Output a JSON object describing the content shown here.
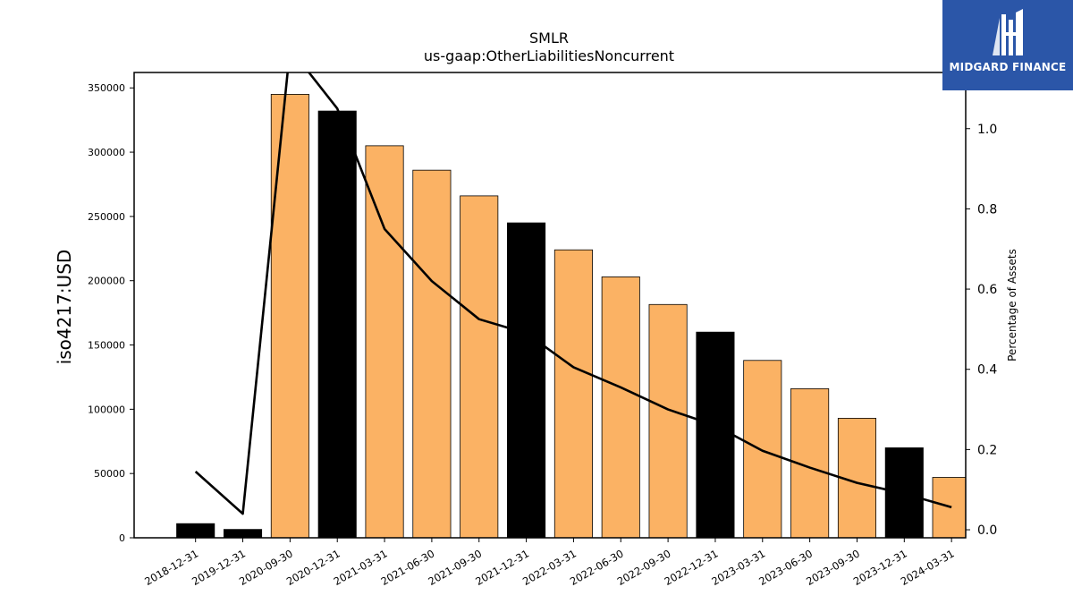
{
  "chart_data": {
    "type": "bar",
    "title": "SMLR",
    "subtitle": "us-gaap:OtherLiabilitiesNoncurrent",
    "ylabel": "iso4217:USD",
    "y2label": "Percentage of Assets",
    "ylim": [
      0,
      362000
    ],
    "y2lim": [
      -0.02,
      1.14
    ],
    "yticks": [
      0,
      50000,
      100000,
      150000,
      200000,
      250000,
      300000,
      350000
    ],
    "y2ticks": [
      "0.0",
      "0.2",
      "0.4",
      "0.6",
      "0.8",
      "1.0"
    ],
    "categories": [
      "2018-12-31",
      "2019-12-31",
      "2020-09-30",
      "2020-12-31",
      "2021-03-31",
      "2021-06-30",
      "2021-09-30",
      "2021-12-31",
      "2022-03-31",
      "2022-06-30",
      "2022-09-30",
      "2022-12-31",
      "2023-03-31",
      "2023-06-30",
      "2023-09-30",
      "2023-12-31",
      "2024-03-31"
    ],
    "series": [
      {
        "kind": "bar",
        "axis": "left",
        "values": [
          11000,
          6500,
          345000,
          332000,
          305000,
          286000,
          266000,
          245000,
          224000,
          203000,
          181500,
          160000,
          138000,
          116000,
          93000,
          70000,
          47000
        ],
        "annual": [
          true,
          true,
          false,
          true,
          false,
          false,
          false,
          true,
          false,
          false,
          false,
          true,
          false,
          false,
          false,
          true,
          false
        ]
      },
      {
        "kind": "line",
        "axis": "right",
        "values": [
          0.145,
          0.04,
          1.2,
          1.05,
          0.75,
          0.62,
          0.525,
          0.49,
          0.405,
          0.355,
          0.3,
          0.26,
          0.197,
          0.155,
          0.117,
          0.09,
          0.056
        ]
      }
    ],
    "colors": {
      "annual_bar": "#000000",
      "quarter_bar": "#fbb264",
      "line": "#000000"
    },
    "grid": false
  },
  "logo": {
    "text": "MIDGARD FINANCE",
    "bg": "#2b56a8"
  }
}
